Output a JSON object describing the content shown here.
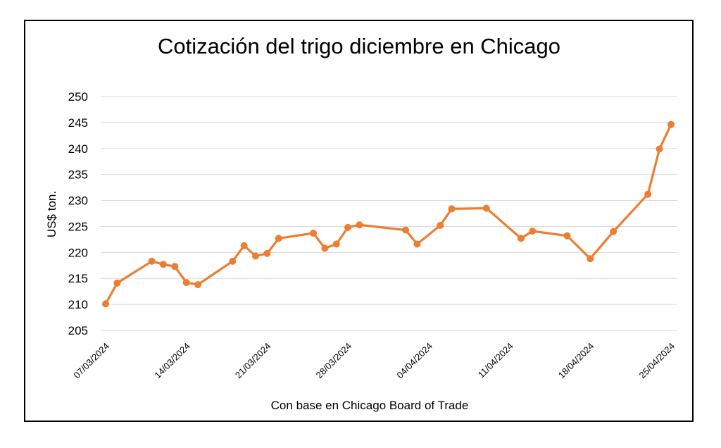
{
  "chart_data": {
    "type": "line",
    "title": "Cotización del trigo diciembre en Chicago",
    "xlabel": "Con base en Chicago Board of Trade",
    "ylabel": "US$ ton.",
    "ylim": [
      205,
      250
    ],
    "yticks": [
      "205",
      "210",
      "215",
      "220",
      "225",
      "230",
      "235",
      "240",
      "245",
      "250"
    ],
    "xlim": [
      "2024-03-07",
      "2024-04-25"
    ],
    "xticks": [
      {
        "date": "2024-03-07",
        "label": "07/03/2024"
      },
      {
        "date": "2024-03-14",
        "label": "14/03/2024"
      },
      {
        "date": "2024-03-21",
        "label": "21/03/2024"
      },
      {
        "date": "2024-03-28",
        "label": "28/03/2024"
      },
      {
        "date": "2024-04-04",
        "label": "04/04/2024"
      },
      {
        "date": "2024-04-11",
        "label": "11/04/2024"
      },
      {
        "date": "2024-04-18",
        "label": "18/04/2024"
      },
      {
        "date": "2024-04-25",
        "label": "25/04/2024"
      }
    ],
    "grid": true,
    "line_color": "#ed7d31",
    "series": [
      {
        "points": [
          {
            "x": "2024-03-07",
            "y": 210.1
          },
          {
            "x": "2024-03-08",
            "y": 214.1
          },
          {
            "x": "2024-03-11",
            "y": 218.3
          },
          {
            "x": "2024-03-12",
            "y": 217.7
          },
          {
            "x": "2024-03-13",
            "y": 217.3
          },
          {
            "x": "2024-03-14",
            "y": 214.2
          },
          {
            "x": "2024-03-15",
            "y": 213.8
          },
          {
            "x": "2024-03-18",
            "y": 218.3
          },
          {
            "x": "2024-03-19",
            "y": 221.3
          },
          {
            "x": "2024-03-20",
            "y": 219.3
          },
          {
            "x": "2024-03-21",
            "y": 219.8
          },
          {
            "x": "2024-03-22",
            "y": 222.7
          },
          {
            "x": "2024-03-25",
            "y": 223.7
          },
          {
            "x": "2024-03-26",
            "y": 220.8
          },
          {
            "x": "2024-03-27",
            "y": 221.6
          },
          {
            "x": "2024-03-28",
            "y": 224.8
          },
          {
            "x": "2024-03-29",
            "y": 225.3
          },
          {
            "x": "2024-04-02",
            "y": 224.3
          },
          {
            "x": "2024-04-03",
            "y": 221.6
          },
          {
            "x": "2024-04-05",
            "y": 225.2
          },
          {
            "x": "2024-04-06",
            "y": 228.4
          },
          {
            "x": "2024-04-09",
            "y": 228.5
          },
          {
            "x": "2024-04-12",
            "y": 222.7
          },
          {
            "x": "2024-04-13",
            "y": 224.1
          },
          {
            "x": "2024-04-16",
            "y": 223.2
          },
          {
            "x": "2024-04-18",
            "y": 218.8
          },
          {
            "x": "2024-04-20",
            "y": 224.0
          },
          {
            "x": "2024-04-23",
            "y": 231.2
          },
          {
            "x": "2024-04-24",
            "y": 239.9
          },
          {
            "x": "2024-04-25",
            "y": 244.6
          }
        ]
      }
    ]
  }
}
